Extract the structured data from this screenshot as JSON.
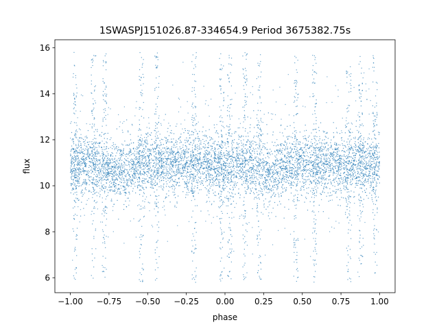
{
  "chart_data": {
    "type": "scatter",
    "title": "1SWASPJ151026.87-334654.9 Period 3675382.75s",
    "xlabel": "phase",
    "ylabel": "flux",
    "xlim": [
      -1.1,
      1.1
    ],
    "ylim": [
      5.35,
      16.35
    ],
    "xticks": [
      -1.0,
      -0.75,
      -0.5,
      -0.25,
      0.0,
      0.25,
      0.5,
      0.75,
      1.0
    ],
    "xtick_labels": [
      "−1.00",
      "−0.75",
      "−0.50",
      "−0.25",
      "0.00",
      "0.25",
      "0.50",
      "0.75",
      "1.00"
    ],
    "yticks": [
      6,
      8,
      10,
      12,
      14,
      16
    ],
    "ytick_labels": [
      "6",
      "8",
      "10",
      "12",
      "14",
      "16"
    ],
    "grid": false,
    "legend": "none",
    "marker_color": "#1f77b4",
    "series": [
      {
        "x_range": [
          -1.0,
          1.0
        ],
        "mean_flux": 10.9,
        "core_band": [
          9.4,
          12.4
        ],
        "full_range": [
          5.8,
          15.8
        ],
        "periodic_repeat": 1.0,
        "flux_dip_phases": [
          -0.7,
          0.3
        ],
        "flux_dip_level": 10.6,
        "dense_high_scatter_phases": [
          -0.97,
          -0.85,
          -0.78,
          -0.54,
          -0.44,
          -0.2,
          -0.02,
          0.03,
          0.13,
          0.22,
          0.46,
          0.58,
          0.8,
          0.88,
          0.97
        ]
      }
    ]
  }
}
